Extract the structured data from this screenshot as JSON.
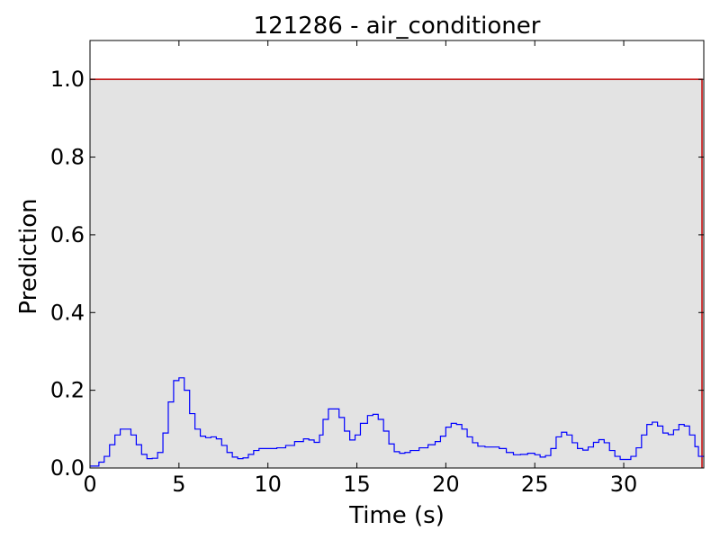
{
  "chart_data": {
    "type": "line",
    "title": "121286 - air_conditioner",
    "xlabel": "Time (s)",
    "ylabel": "Prediction",
    "xlim": [
      0,
      34.5
    ],
    "ylim": [
      0,
      1.1
    ],
    "x_ticks": [
      0,
      5,
      10,
      15,
      20,
      25,
      30
    ],
    "y_ticks": [
      0.0,
      0.2,
      0.4,
      0.6,
      0.8,
      1.0
    ],
    "x_tick_labels": [
      "0",
      "5",
      "10",
      "15",
      "20",
      "25",
      "30"
    ],
    "y_tick_labels": [
      "0.0",
      "0.2",
      "0.4",
      "0.6",
      "0.8",
      "1.0"
    ],
    "grid": false,
    "background_region": {
      "label_value": 1.0,
      "x_start": 0,
      "x_end": 34.4,
      "fill_color": "#e3e3e3",
      "edge_color": "#c00000"
    },
    "series": [
      {
        "color": "#0000ff",
        "style": "step",
        "points": [
          [
            0.0,
            0.005
          ],
          [
            0.5,
            0.015
          ],
          [
            0.8,
            0.03
          ],
          [
            1.1,
            0.06
          ],
          [
            1.4,
            0.085
          ],
          [
            1.7,
            0.1
          ],
          [
            2.0,
            0.1
          ],
          [
            2.3,
            0.085
          ],
          [
            2.6,
            0.06
          ],
          [
            2.9,
            0.035
          ],
          [
            3.2,
            0.024
          ],
          [
            3.5,
            0.025
          ],
          [
            3.8,
            0.04
          ],
          [
            4.1,
            0.09
          ],
          [
            4.4,
            0.17
          ],
          [
            4.7,
            0.225
          ],
          [
            5.0,
            0.232
          ],
          [
            5.3,
            0.2
          ],
          [
            5.6,
            0.14
          ],
          [
            5.9,
            0.1
          ],
          [
            6.2,
            0.082
          ],
          [
            6.5,
            0.078
          ],
          [
            6.8,
            0.08
          ],
          [
            7.1,
            0.075
          ],
          [
            7.4,
            0.058
          ],
          [
            7.7,
            0.04
          ],
          [
            8.0,
            0.028
          ],
          [
            8.3,
            0.024
          ],
          [
            8.6,
            0.026
          ],
          [
            8.9,
            0.035
          ],
          [
            9.2,
            0.045
          ],
          [
            9.5,
            0.05
          ],
          [
            10.0,
            0.05
          ],
          [
            10.5,
            0.052
          ],
          [
            11.0,
            0.058
          ],
          [
            11.5,
            0.068
          ],
          [
            12.0,
            0.075
          ],
          [
            12.3,
            0.072
          ],
          [
            12.6,
            0.066
          ],
          [
            12.9,
            0.085
          ],
          [
            13.1,
            0.125
          ],
          [
            13.4,
            0.152
          ],
          [
            13.7,
            0.152
          ],
          [
            14.0,
            0.13
          ],
          [
            14.3,
            0.095
          ],
          [
            14.6,
            0.072
          ],
          [
            14.9,
            0.085
          ],
          [
            15.2,
            0.115
          ],
          [
            15.6,
            0.135
          ],
          [
            15.9,
            0.138
          ],
          [
            16.2,
            0.125
          ],
          [
            16.5,
            0.095
          ],
          [
            16.8,
            0.062
          ],
          [
            17.1,
            0.042
          ],
          [
            17.4,
            0.038
          ],
          [
            17.7,
            0.04
          ],
          [
            18.0,
            0.045
          ],
          [
            18.5,
            0.052
          ],
          [
            19.0,
            0.06
          ],
          [
            19.4,
            0.068
          ],
          [
            19.7,
            0.082
          ],
          [
            20.0,
            0.105
          ],
          [
            20.3,
            0.115
          ],
          [
            20.6,
            0.112
          ],
          [
            20.9,
            0.1
          ],
          [
            21.2,
            0.08
          ],
          [
            21.5,
            0.065
          ],
          [
            21.8,
            0.056
          ],
          [
            22.2,
            0.054
          ],
          [
            22.6,
            0.054
          ],
          [
            23.0,
            0.05
          ],
          [
            23.4,
            0.04
          ],
          [
            23.8,
            0.034
          ],
          [
            24.2,
            0.035
          ],
          [
            24.6,
            0.038
          ],
          [
            25.0,
            0.034
          ],
          [
            25.3,
            0.028
          ],
          [
            25.6,
            0.032
          ],
          [
            25.9,
            0.05
          ],
          [
            26.2,
            0.08
          ],
          [
            26.5,
            0.092
          ],
          [
            26.8,
            0.085
          ],
          [
            27.1,
            0.065
          ],
          [
            27.4,
            0.05
          ],
          [
            27.7,
            0.046
          ],
          [
            28.0,
            0.054
          ],
          [
            28.3,
            0.066
          ],
          [
            28.6,
            0.073
          ],
          [
            28.9,
            0.065
          ],
          [
            29.2,
            0.045
          ],
          [
            29.5,
            0.03
          ],
          [
            29.8,
            0.022
          ],
          [
            30.1,
            0.022
          ],
          [
            30.4,
            0.03
          ],
          [
            30.7,
            0.052
          ],
          [
            31.0,
            0.085
          ],
          [
            31.3,
            0.112
          ],
          [
            31.6,
            0.118
          ],
          [
            31.9,
            0.108
          ],
          [
            32.2,
            0.09
          ],
          [
            32.5,
            0.086
          ],
          [
            32.8,
            0.098
          ],
          [
            33.1,
            0.112
          ],
          [
            33.4,
            0.108
          ],
          [
            33.7,
            0.085
          ],
          [
            34.0,
            0.055
          ],
          [
            34.2,
            0.03
          ],
          [
            34.5,
            0.028
          ]
        ]
      }
    ]
  }
}
